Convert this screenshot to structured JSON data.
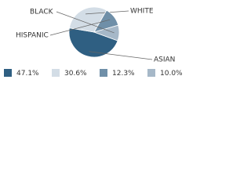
{
  "chart_data": {
    "type": "pie",
    "categories": [
      "ASIAN",
      "WHITE",
      "HISPANIC",
      "BLACK"
    ],
    "values": [
      47.1,
      30.6,
      12.3,
      10.0
    ],
    "value_labels": [
      "47.1%",
      "30.6%",
      "12.3%",
      "10.0%"
    ],
    "colors": [
      "#2f5f82",
      "#d3dde6",
      "#6f8fa8",
      "#a6b8c8"
    ]
  }
}
